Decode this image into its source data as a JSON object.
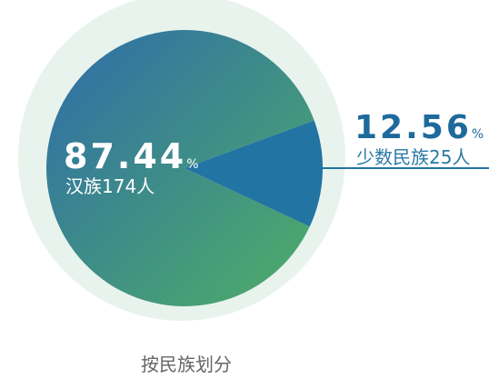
{
  "chart_data": {
    "type": "pie",
    "title": "按民族划分",
    "categories": [
      "汉族174人",
      "少数民族25人"
    ],
    "values": [
      87.44,
      12.56
    ],
    "unit": "%",
    "colors": [
      "#2e6caa",
      "#2274a2"
    ]
  }
}
